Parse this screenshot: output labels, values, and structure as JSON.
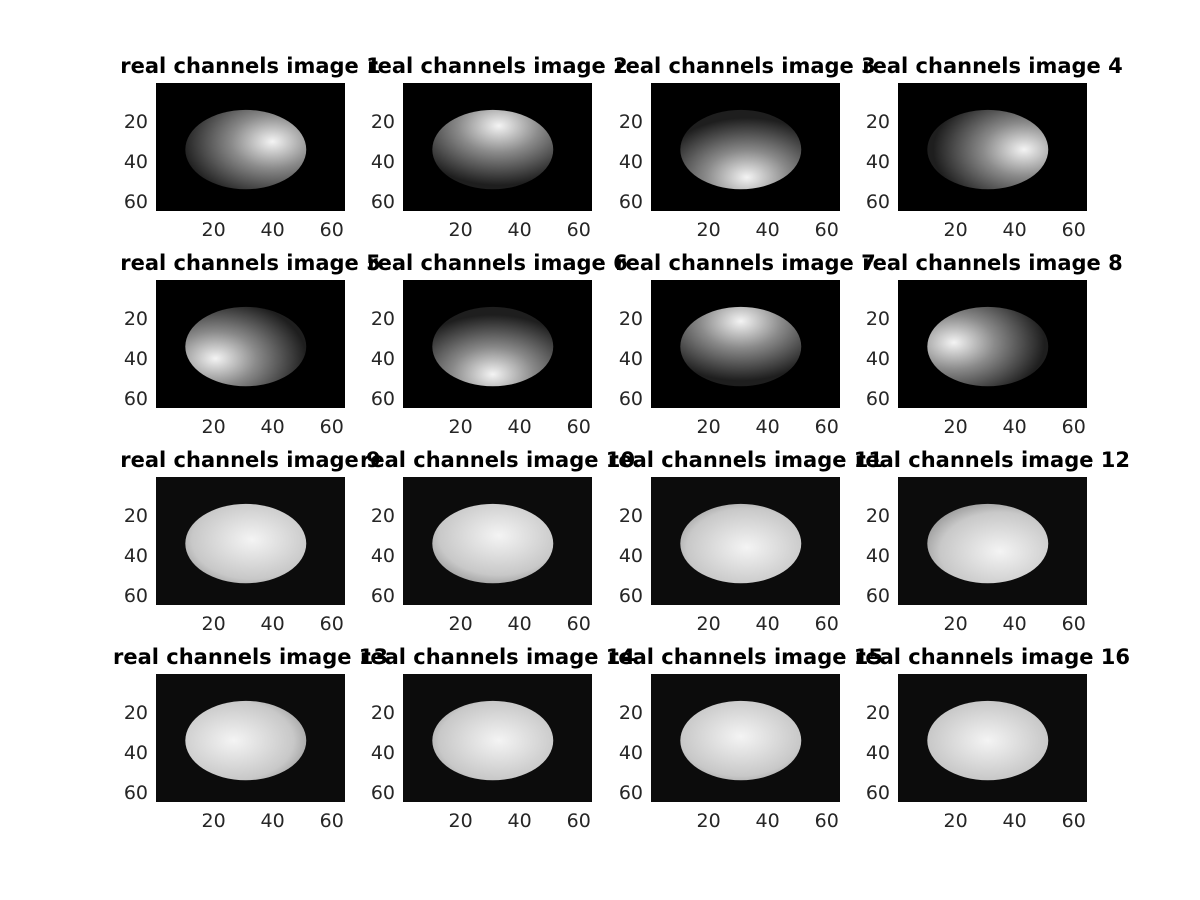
{
  "figure": {
    "background": "#ffffff",
    "axis_text_color": "#262626",
    "xticks": [
      "20",
      "40",
      "60"
    ],
    "yticks": [
      "20",
      "40",
      "60"
    ],
    "panels": [
      {
        "title": "real channels image 1"
      },
      {
        "title": "real channels image 2"
      },
      {
        "title": "real channels image 3"
      },
      {
        "title": "real channels image 4"
      },
      {
        "title": "real channels image 5"
      },
      {
        "title": "real channels image 6"
      },
      {
        "title": "real channels image 7"
      },
      {
        "title": "real channels image 8"
      },
      {
        "title": "real channels image 9"
      },
      {
        "title": "real channels image 10"
      },
      {
        "title": "real channels image 11"
      },
      {
        "title": "real channels image 12"
      },
      {
        "title": "real channels image 13"
      },
      {
        "title": "real channels image 14"
      },
      {
        "title": "real channels image 15"
      },
      {
        "title": "real channels image 16"
      }
    ]
  }
}
